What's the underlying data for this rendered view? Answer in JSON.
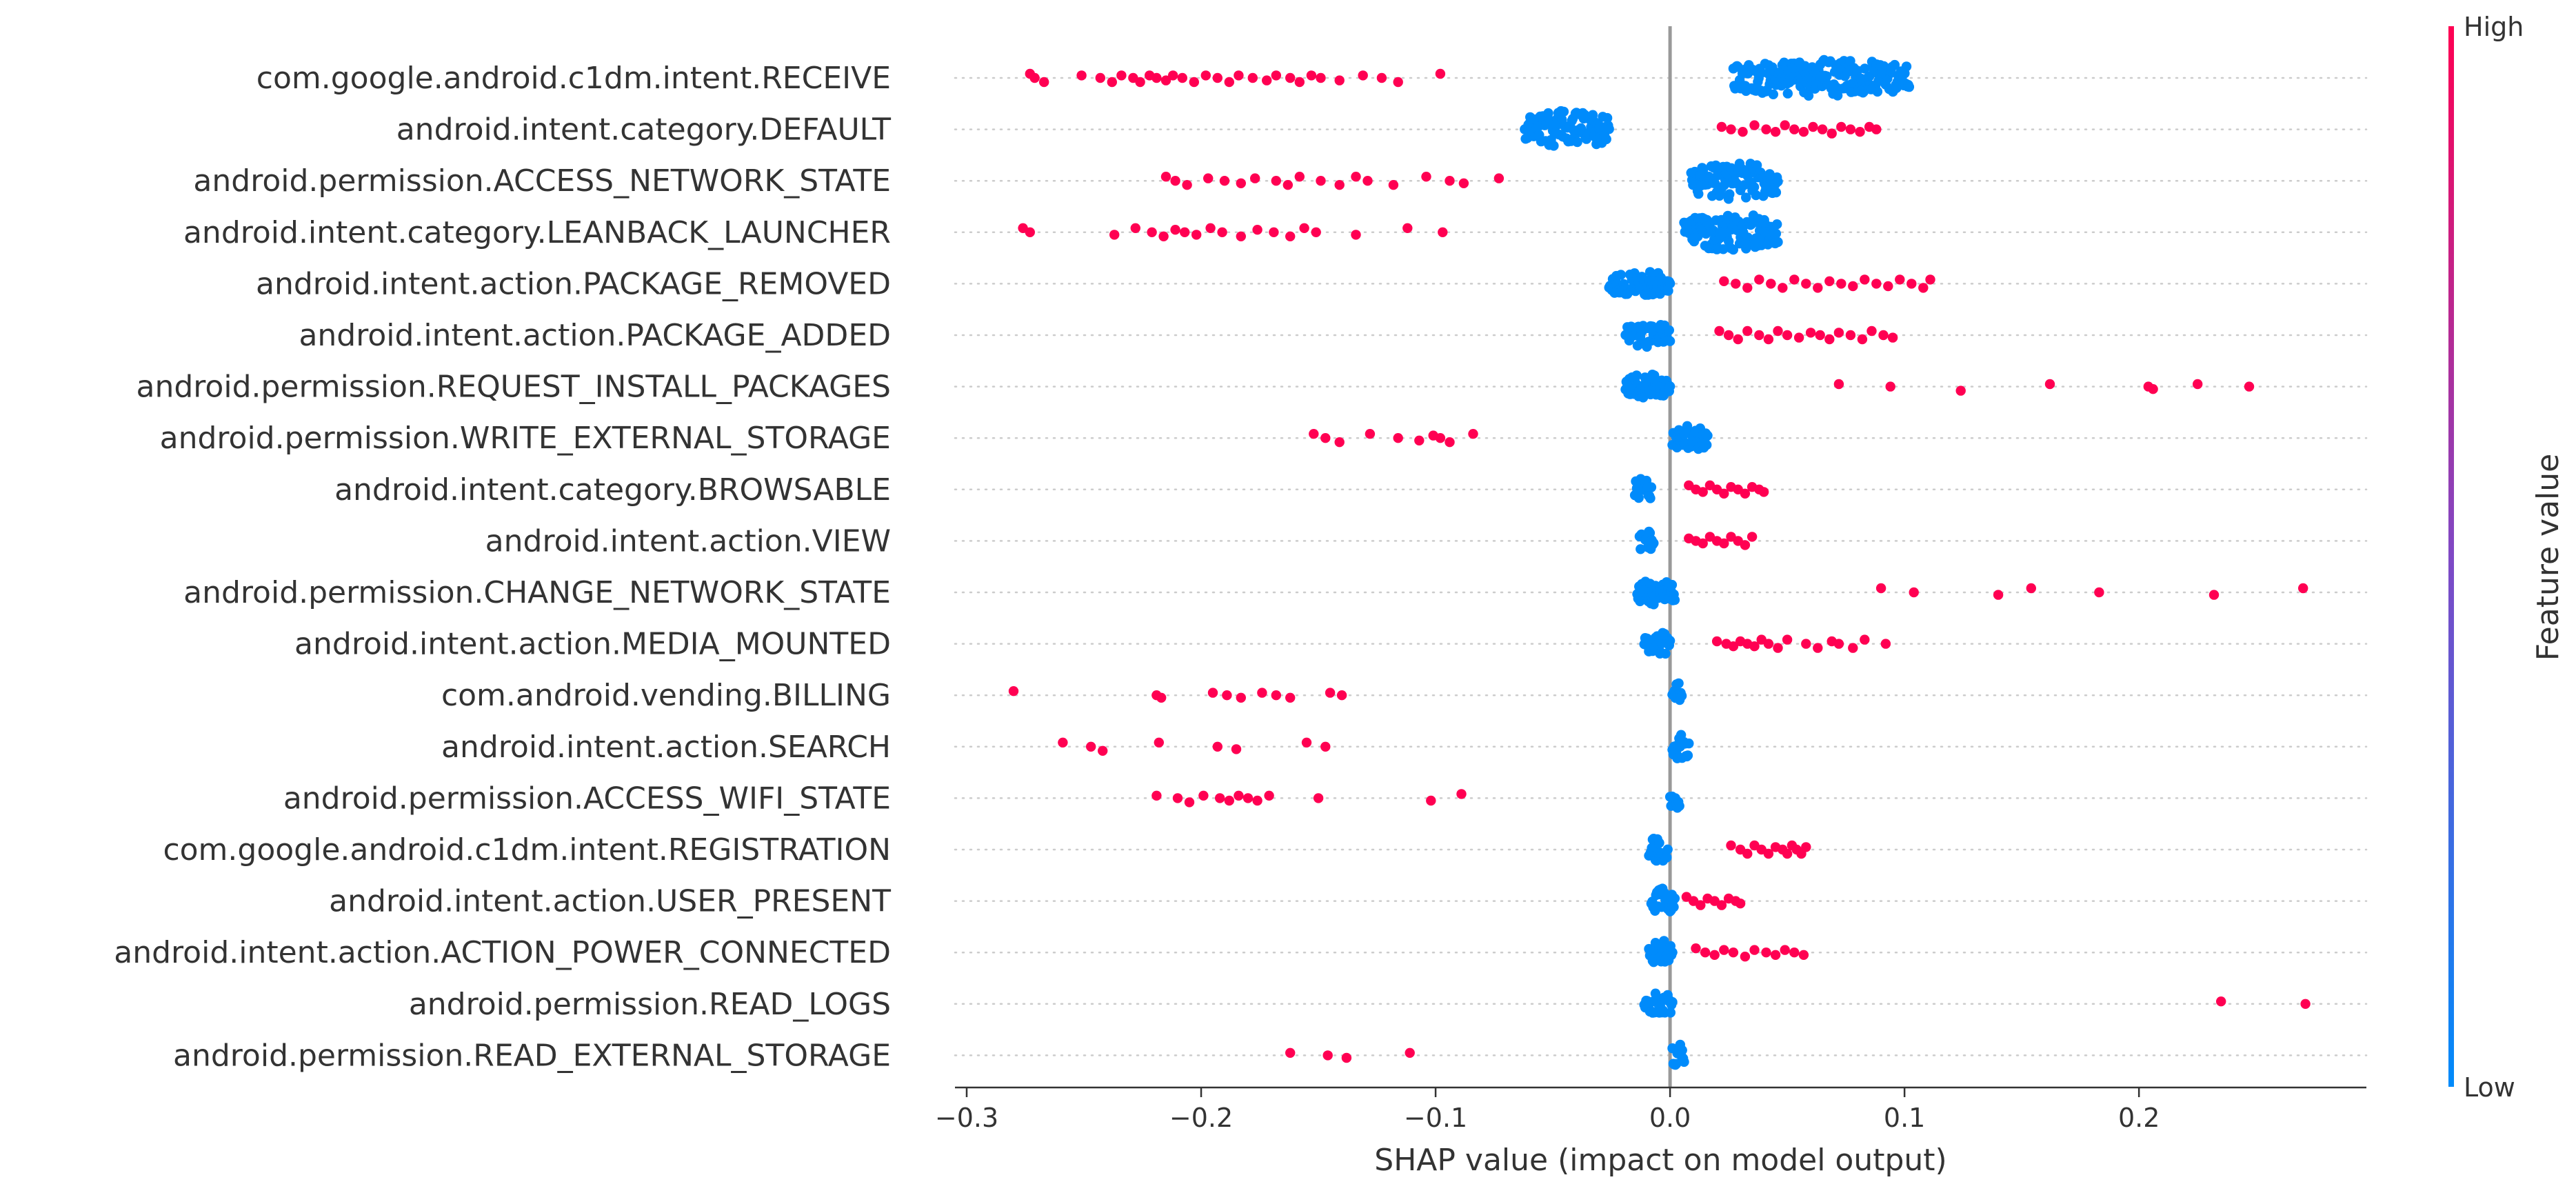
{
  "chart_data": {
    "type": "scatter",
    "subtype": "shap-beeswarm",
    "title": "",
    "xlabel": "SHAP value (impact on model output)",
    "xlim": [
      -0.305,
      0.297
    ],
    "xticks": [
      -0.3,
      -0.2,
      -0.1,
      0.0,
      0.1,
      0.2
    ],
    "xtick_labels": [
      "−0.3",
      "−0.2",
      "−0.1",
      "0.0",
      "0.1",
      "0.2"
    ],
    "colorbar": {
      "label": "Feature value",
      "high_label": "High",
      "low_label": "Low",
      "high_color": "#ff0052",
      "low_color": "#008bfb"
    },
    "features": [
      {
        "name": "com.google.android.c1dm.intent.RECEIVE",
        "high": [
          -0.273,
          -0.271,
          -0.267,
          -0.251,
          -0.243,
          -0.238,
          -0.234,
          -0.229,
          -0.226,
          -0.222,
          -0.219,
          -0.215,
          -0.212,
          -0.208,
          -0.203,
          -0.198,
          -0.193,
          -0.188,
          -0.184,
          -0.178,
          -0.172,
          -0.168,
          -0.162,
          -0.158,
          -0.153,
          -0.149,
          -0.141,
          -0.131,
          -0.123,
          -0.116,
          -0.098
        ],
        "low_range": [
          0.027,
          0.102
        ]
      },
      {
        "name": "android.intent.category.DEFAULT",
        "high": [
          0.022,
          0.026,
          0.031,
          0.036,
          0.041,
          0.045,
          0.049,
          0.053,
          0.057,
          0.061,
          0.065,
          0.069,
          0.073,
          0.077,
          0.081,
          0.085,
          0.088
        ],
        "low_range": [
          -0.062,
          -0.026
        ]
      },
      {
        "name": "android.permission.ACCESS_NETWORK_STATE",
        "high": [
          -0.215,
          -0.211,
          -0.206,
          -0.197,
          -0.19,
          -0.183,
          -0.177,
          -0.168,
          -0.163,
          -0.158,
          -0.149,
          -0.141,
          -0.134,
          -0.129,
          -0.118,
          -0.104,
          -0.094,
          -0.088,
          -0.073
        ],
        "low_range": [
          0.009,
          0.046
        ]
      },
      {
        "name": "android.intent.category.LEANBACK_LAUNCHER",
        "high": [
          -0.276,
          -0.273,
          -0.237,
          -0.228,
          -0.221,
          -0.216,
          -0.211,
          -0.207,
          -0.202,
          -0.196,
          -0.191,
          -0.183,
          -0.176,
          -0.169,
          -0.162,
          -0.156,
          -0.151,
          -0.134,
          -0.112,
          -0.097
        ],
        "low_range": [
          0.006,
          0.046
        ]
      },
      {
        "name": "android.intent.action.PACKAGE_REMOVED",
        "high": [
          0.023,
          0.028,
          0.033,
          0.038,
          0.043,
          0.048,
          0.053,
          0.058,
          0.063,
          0.068,
          0.073,
          0.078,
          0.083,
          0.088,
          0.093,
          0.098,
          0.103,
          0.108,
          0.111
        ],
        "low_range": [
          -0.026,
          0.0
        ]
      },
      {
        "name": "android.intent.action.PACKAGE_ADDED",
        "high": [
          0.021,
          0.025,
          0.029,
          0.033,
          0.038,
          0.042,
          0.046,
          0.05,
          0.055,
          0.06,
          0.064,
          0.068,
          0.072,
          0.077,
          0.082,
          0.086,
          0.091,
          0.095
        ],
        "low_range": [
          -0.019,
          0.0
        ]
      },
      {
        "name": "android.permission.REQUEST_INSTALL_PACKAGES",
        "high": [
          0.072,
          0.094,
          0.124,
          0.162,
          0.204,
          0.206,
          0.225,
          0.247
        ],
        "low_range": [
          -0.019,
          0.0
        ]
      },
      {
        "name": "android.permission.WRITE_EXTERNAL_STORAGE",
        "high": [
          -0.152,
          -0.147,
          -0.141,
          -0.128,
          -0.116,
          -0.107,
          -0.101,
          -0.098,
          -0.094,
          -0.084
        ],
        "low_range": [
          0.001,
          0.016
        ]
      },
      {
        "name": "android.intent.category.BROWSABLE",
        "high": [
          0.008,
          0.011,
          0.014,
          0.017,
          0.02,
          0.023,
          0.026,
          0.029,
          0.032,
          0.035,
          0.038,
          0.04
        ],
        "low_range": [
          -0.015,
          -0.008
        ]
      },
      {
        "name": "android.intent.action.VIEW",
        "high": [
          0.008,
          0.011,
          0.014,
          0.017,
          0.02,
          0.023,
          0.026,
          0.029,
          0.032,
          0.035
        ],
        "low_range": [
          -0.013,
          -0.007
        ]
      },
      {
        "name": "android.permission.CHANGE_NETWORK_STATE",
        "high": [
          0.09,
          0.104,
          0.14,
          0.154,
          0.183,
          0.232,
          0.27
        ],
        "low_range": [
          -0.014,
          0.002
        ]
      },
      {
        "name": "android.intent.action.MEDIA_MOUNTED",
        "high": [
          0.02,
          0.024,
          0.027,
          0.03,
          0.033,
          0.036,
          0.039,
          0.042,
          0.046,
          0.05,
          0.058,
          0.063,
          0.069,
          0.072,
          0.078,
          0.083,
          0.092
        ],
        "low_range": [
          -0.011,
          0.0
        ]
      },
      {
        "name": "com.android.vending.BILLING",
        "high": [
          -0.28,
          -0.219,
          -0.217,
          -0.195,
          -0.189,
          -0.183,
          -0.174,
          -0.168,
          -0.162,
          -0.145,
          -0.14
        ],
        "low_range": [
          0.001,
          0.005
        ]
      },
      {
        "name": "android.intent.action.SEARCH",
        "high": [
          -0.259,
          -0.247,
          -0.242,
          -0.218,
          -0.193,
          -0.185,
          -0.155,
          -0.147
        ],
        "low_range": [
          0.001,
          0.008
        ]
      },
      {
        "name": "android.permission.ACCESS_WIFI_STATE",
        "high": [
          -0.219,
          -0.21,
          -0.205,
          -0.199,
          -0.192,
          -0.188,
          -0.184,
          -0.18,
          -0.176,
          -0.171,
          -0.15,
          -0.102,
          -0.089
        ],
        "low_range": [
          0.0,
          0.004
        ]
      },
      {
        "name": "com.google.android.c1dm.intent.REGISTRATION",
        "high": [
          0.026,
          0.03,
          0.033,
          0.036,
          0.039,
          0.042,
          0.045,
          0.048,
          0.05,
          0.052,
          0.054,
          0.056,
          0.058
        ],
        "low_range": [
          -0.009,
          -0.001
        ]
      },
      {
        "name": "android.intent.action.USER_PRESENT",
        "high": [
          0.007,
          0.01,
          0.013,
          0.016,
          0.019,
          0.022,
          0.025,
          0.028,
          0.03
        ],
        "low_range": [
          -0.008,
          0.002
        ]
      },
      {
        "name": "android.intent.action.ACTION_POWER_CONNECTED",
        "high": [
          0.011,
          0.015,
          0.019,
          0.023,
          0.027,
          0.032,
          0.036,
          0.041,
          0.045,
          0.049,
          0.053,
          0.057
        ],
        "low_range": [
          -0.009,
          0.001
        ]
      },
      {
        "name": "android.permission.READ_LOGS",
        "high": [
          0.235,
          0.271
        ],
        "low_range": [
          -0.011,
          0.001
        ]
      },
      {
        "name": "android.permission.READ_EXTERNAL_STORAGE",
        "high": [
          -0.162,
          -0.146,
          -0.138,
          -0.111
        ],
        "low_range": [
          0.001,
          0.006
        ]
      }
    ]
  }
}
